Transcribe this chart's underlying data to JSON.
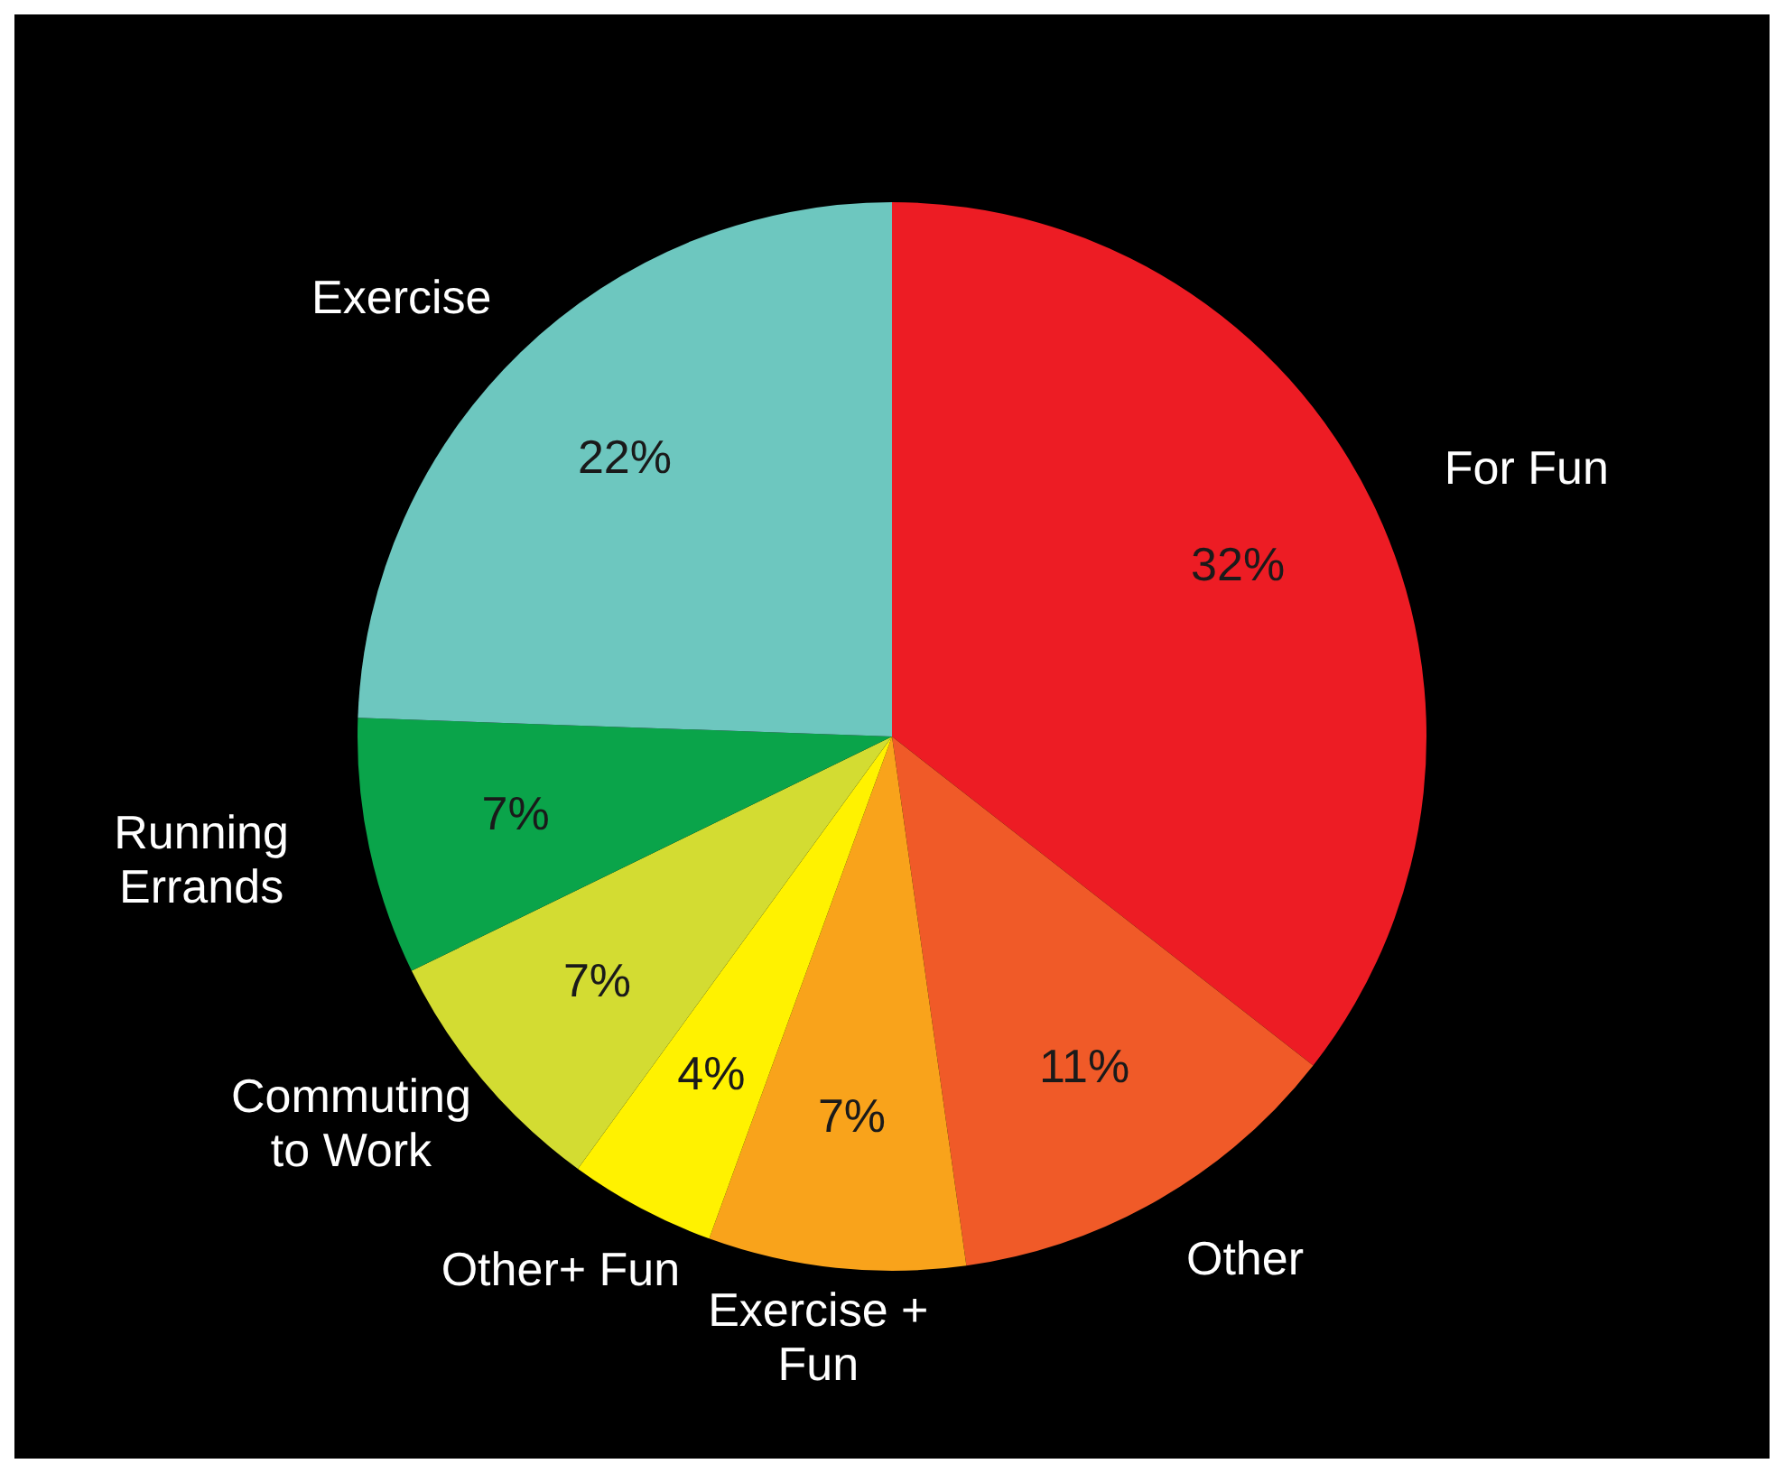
{
  "chart_data": {
    "type": "pie",
    "categories": [
      "For Fun",
      "Other",
      "Exercise + Fun",
      "Other+ Fun",
      "Commuting to Work",
      "Running Errands",
      "Exercise"
    ],
    "values": [
      32,
      11,
      7,
      4,
      7,
      7,
      22
    ],
    "value_labels": [
      "32%",
      "11%",
      "7%",
      "4%",
      "7%",
      "7%",
      "22%"
    ],
    "colors": [
      "#ed1c24",
      "#f05a28",
      "#f9a31b",
      "#fff200",
      "#d3dc32",
      "#0aa44a",
      "#6dc7bf"
    ],
    "legend": false
  }
}
